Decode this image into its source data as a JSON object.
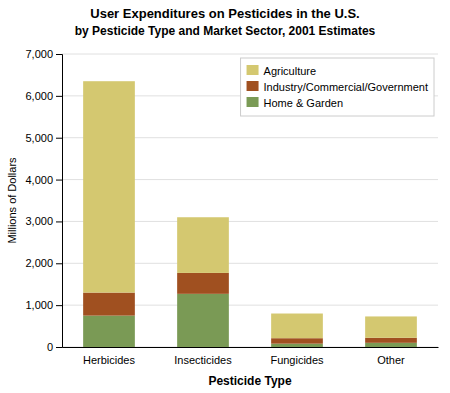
{
  "chart_data": {
    "type": "bar",
    "stacked": true,
    "title": "User Expenditures on Pesticides in the U.S.",
    "subtitle": "by Pesticide Type and Market Sector, 2001 Estimates",
    "xlabel": "Pesticide Type",
    "ylabel": "Millions of Dollars",
    "categories": [
      "Herbicides",
      "Insecticides",
      "Fungicides",
      "Other"
    ],
    "series": [
      {
        "name": "Agriculture",
        "color": "#d4c870",
        "values": [
          5050,
          1330,
          590,
          510
        ]
      },
      {
        "name": "Industry/Commercial/Government",
        "color": "#a05020",
        "values": [
          550,
          500,
          130,
          120
        ]
      },
      {
        "name": "Home & Garden",
        "color": "#7a9a55",
        "values": [
          750,
          1270,
          80,
          100
        ]
      }
    ],
    "ylim": [
      0,
      7000
    ],
    "yticks": [
      0,
      {
        "value": 1000,
        "label": "1,000"
      },
      {
        "value": 2000,
        "label": "2,000"
      },
      {
        "value": 3000,
        "label": "3,000"
      },
      {
        "value": 4000,
        "label": "4,000"
      },
      {
        "value": 5000,
        "label": "5,000"
      },
      {
        "value": 6000,
        "label": "6,000"
      },
      {
        "value": 7000,
        "label": "7,000"
      }
    ],
    "grid": true,
    "legend": "upper right"
  }
}
